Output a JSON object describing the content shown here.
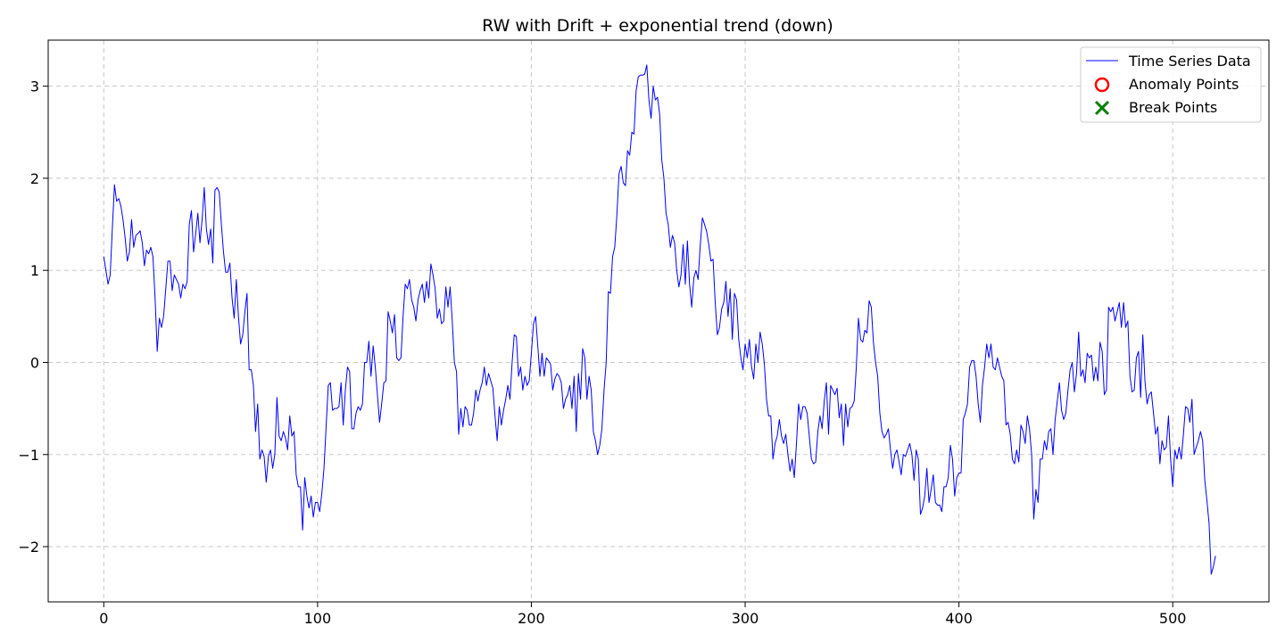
{
  "chart_data": {
    "type": "line",
    "title": "RW with Drift + exponential trend (down)",
    "xlabel": "",
    "ylabel": "",
    "xlim": [
      -26,
      545
    ],
    "ylim": [
      -2.6,
      3.5
    ],
    "x_ticks": [
      0,
      100,
      200,
      300,
      400,
      500
    ],
    "y_ticks": [
      -2,
      -1,
      0,
      1,
      2,
      3
    ],
    "grid": true,
    "legend_position": "top-right",
    "legend": [
      {
        "label": "Time Series Data",
        "marker": "line",
        "color": "#0000ff"
      },
      {
        "label": "Anomaly Points",
        "marker": "circle",
        "color": "#ff0000"
      },
      {
        "label": "Break Points",
        "marker": "x",
        "color": "#008000"
      }
    ],
    "series": [
      {
        "name": "Time Series Data",
        "color": "#0000ff",
        "x_start": 0,
        "x_step": 1,
        "values": [
          1.15,
          1.0,
          0.85,
          0.95,
          1.45,
          1.93,
          1.75,
          1.78,
          1.7,
          1.55,
          1.35,
          1.1,
          1.2,
          1.55,
          1.25,
          1.38,
          1.4,
          1.43,
          1.3,
          1.05,
          1.22,
          1.18,
          1.25,
          1.15,
          0.7,
          0.12,
          0.48,
          0.38,
          0.5,
          0.8,
          1.1,
          1.1,
          0.78,
          0.95,
          0.9,
          0.85,
          0.7,
          0.85,
          0.8,
          0.88,
          1.5,
          1.65,
          1.2,
          1.4,
          1.62,
          1.3,
          1.55,
          1.9,
          1.45,
          1.28,
          1.45,
          1.08,
          1.87,
          1.9,
          1.85,
          1.5,
          1.2,
          0.98,
          0.98,
          1.08,
          0.7,
          0.48,
          0.9,
          0.5,
          0.2,
          0.3,
          0.55,
          0.75,
          -0.08,
          -0.08,
          -0.25,
          -0.75,
          -0.45,
          -1.05,
          -0.95,
          -1.02,
          -1.3,
          -1.02,
          -0.95,
          -1.15,
          -1.0,
          -0.38,
          -0.8,
          -0.85,
          -0.75,
          -0.82,
          -0.95,
          -0.58,
          -0.8,
          -0.75,
          -1.22,
          -1.35,
          -1.35,
          -1.82,
          -1.25,
          -1.45,
          -1.58,
          -1.45,
          -1.68,
          -1.52,
          -1.52,
          -1.62,
          -1.42,
          -1.15,
          -0.7,
          -0.25,
          -0.22,
          -0.52,
          -0.5,
          -0.5,
          -0.48,
          -0.22,
          -0.68,
          -0.3,
          -0.05,
          -0.1,
          -0.72,
          -0.72,
          -0.55,
          -0.48,
          -0.52,
          -0.45,
          0.0,
          0.0,
          0.23,
          -0.15,
          0.18,
          -0.05,
          -0.35,
          -0.65,
          -0.45,
          -0.22,
          -0.2,
          0.55,
          0.45,
          0.32,
          0.52,
          0.05,
          0.02,
          0.05,
          0.5,
          0.85,
          0.8,
          0.9,
          0.68,
          0.6,
          0.45,
          0.68,
          0.78,
          0.85,
          0.65,
          0.88,
          0.7,
          1.07,
          0.95,
          0.8,
          0.48,
          0.58,
          0.42,
          0.45,
          0.82,
          0.6,
          0.82,
          0.45,
          0.0,
          -0.1,
          -0.78,
          -0.5,
          -0.7,
          -0.48,
          -0.52,
          -0.68,
          -0.68,
          -0.55,
          -0.3,
          -0.42,
          -0.3,
          -0.22,
          -0.05,
          -0.25,
          -0.12,
          -0.2,
          -0.28,
          -0.58,
          -0.85,
          -0.48,
          -0.68,
          -0.52,
          -0.4,
          -0.25,
          -0.4,
          0.0,
          0.3,
          0.28,
          -0.15,
          -0.05,
          -0.3,
          -0.15,
          -0.25,
          -0.2,
          0.1,
          0.42,
          0.5,
          0.18,
          -0.15,
          0.1,
          -0.15,
          0.05,
          0.02,
          -0.02,
          -0.3,
          -0.18,
          -0.12,
          -0.15,
          -0.22,
          -0.5,
          -0.4,
          -0.35,
          -0.25,
          -0.5,
          -0.15,
          -0.75,
          -0.12,
          -0.4,
          0.15,
          0.05,
          -0.4,
          -0.15,
          -0.3,
          -0.75,
          -0.85,
          -1.0,
          -0.9,
          -0.72,
          -0.3,
          0.0,
          0.77,
          0.75,
          1.15,
          1.25,
          1.6,
          2.05,
          2.13,
          1.95,
          1.92,
          2.3,
          2.25,
          2.5,
          2.48,
          2.95,
          3.1,
          3.12,
          3.12,
          3.13,
          3.23,
          2.85,
          2.65,
          3.0,
          2.85,
          2.88,
          2.7,
          2.2,
          2.0,
          1.62,
          1.5,
          1.25,
          1.38,
          1.3,
          1.0,
          0.82,
          0.95,
          1.28,
          0.85,
          1.32,
          0.85,
          0.6,
          0.92,
          1.0,
          0.9,
          1.27,
          1.57,
          1.5,
          1.42,
          1.28,
          1.1,
          1.12,
          0.65,
          0.3,
          0.38,
          0.58,
          0.65,
          0.88,
          0.5,
          0.8,
          0.25,
          0.75,
          0.68,
          0.25,
          0.05,
          -0.08,
          0.2,
          0.05,
          0.25,
          -0.05,
          -0.18,
          0.2,
          0.0,
          0.33,
          0.2,
          -0.02,
          -0.4,
          -0.58,
          -0.58,
          -1.05,
          -0.88,
          -0.8,
          -0.62,
          -0.8,
          -0.88,
          -0.78,
          -1.0,
          -1.18,
          -1.05,
          -1.25,
          -0.88,
          -0.45,
          -0.62,
          -0.48,
          -0.48,
          -0.55,
          -0.8,
          -1.05,
          -1.1,
          -1.08,
          -0.75,
          -0.58,
          -0.72,
          -0.42,
          -0.22,
          -0.78,
          -0.25,
          -0.3,
          -0.35,
          -0.28,
          -0.6,
          -0.45,
          -0.9,
          -0.45,
          -0.7,
          -0.5,
          -0.48,
          -0.42,
          -0.05,
          0.48,
          0.25,
          0.22,
          0.35,
          0.32,
          0.67,
          0.6,
          0.22,
          0.0,
          -0.15,
          -0.55,
          -0.75,
          -0.82,
          -0.78,
          -0.72,
          -0.95,
          -1.15,
          -1.0,
          -0.95,
          -1.08,
          -1.22,
          -1.0,
          -1.02,
          -0.95,
          -0.88,
          -1.0,
          -1.28,
          -0.95,
          -1.05,
          -1.65,
          -1.58,
          -1.45,
          -1.15,
          -1.52,
          -1.38,
          -1.22,
          -1.52,
          -1.55,
          -1.55,
          -1.62,
          -1.35,
          -1.35,
          -1.25,
          -0.9,
          -1.05,
          -1.45,
          -1.25,
          -1.2,
          -1.2,
          -0.62,
          -0.55,
          -0.45,
          -0.05,
          0.02,
          0.02,
          -0.15,
          -0.45,
          -0.65,
          -0.25,
          -0.05,
          0.2,
          0.05,
          0.2,
          -0.05,
          -0.08,
          0.05,
          -0.05,
          -0.15,
          -0.2,
          -0.68,
          -0.65,
          -0.78,
          -1.05,
          -1.1,
          -0.95,
          -1.08,
          -0.68,
          -0.75,
          -0.88,
          -0.58,
          -0.72,
          -1.0,
          -1.7,
          -1.38,
          -1.52,
          -1.05,
          -1.05,
          -0.85,
          -0.95,
          -0.75,
          -0.72,
          -1.0,
          -0.62,
          -0.42,
          -0.22,
          -0.52,
          -0.62,
          -0.55,
          -0.3,
          -0.08,
          0.0,
          -0.32,
          -0.12,
          0.33,
          -0.15,
          -0.08,
          -0.22,
          0.1,
          0.05,
          0.08,
          -0.2,
          -0.05,
          -0.2,
          0.22,
          0.12,
          -0.35,
          -0.3,
          0.6,
          0.55,
          0.6,
          0.45,
          0.55,
          0.65,
          0.38,
          0.65,
          0.38,
          0.45,
          -0.15,
          -0.32,
          -0.3,
          0.05,
          0.12,
          -0.38,
          0.3,
          -0.2,
          -0.45,
          -0.35,
          -0.32,
          -0.55,
          -0.78,
          -0.7,
          -1.1,
          -0.85,
          -0.95,
          -0.92,
          -0.58,
          -1.05,
          -1.35,
          -0.95,
          -1.05,
          -0.92,
          -1.05,
          -0.78,
          -0.48,
          -0.5,
          -0.65,
          -0.4,
          -1.0,
          -0.92,
          -0.85,
          -0.75,
          -0.85,
          -1.28,
          -1.5,
          -1.75,
          -2.3,
          -2.22,
          -2.1
        ]
      }
    ],
    "anomaly_points": [],
    "break_points": []
  }
}
